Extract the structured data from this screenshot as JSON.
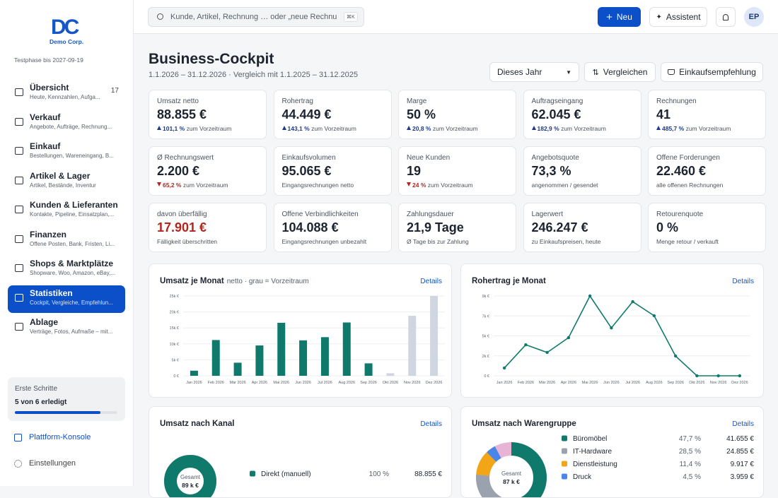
{
  "sidebar": {
    "logo": "DC",
    "company": "Demo Corp.",
    "trial": "Testphase bis 2027-09-19",
    "nav": [
      {
        "title": "Übersicht",
        "subtitle": "Heute, Kennzahlen, Aufga...",
        "badge": "17"
      },
      {
        "title": "Verkauf",
        "subtitle": "Angebote, Aufträge, Rechnung..."
      },
      {
        "title": "Einkauf",
        "subtitle": "Bestellungen, Wareneingang, B..."
      },
      {
        "title": "Artikel & Lager",
        "subtitle": "Artikel, Bestände, Inventur"
      },
      {
        "title": "Kunden & Lieferanten",
        "subtitle": "Kontakte, Pipeline, Einsatzplan,..."
      },
      {
        "title": "Finanzen",
        "subtitle": "Offene Posten, Bank, Fristen, Li..."
      },
      {
        "title": "Shops & Marktplätze",
        "subtitle": "Shopware, Woo, Amazon, eBay,..."
      },
      {
        "title": "Statistiken",
        "subtitle": "Cockpit, Vergleiche, Empfehlun...",
        "active": true
      },
      {
        "title": "Ablage",
        "subtitle": "Verträge, Fotos, Aufmaße – mit..."
      }
    ],
    "onboarding": {
      "title": "Erste Schritte",
      "label": "5 von 6 erledigt",
      "value": 5,
      "max": 6
    },
    "links": [
      "Plattform-Konsole",
      "Einstellungen"
    ]
  },
  "topbar": {
    "search": "Kunde, Artikel, Rechnung … oder „neue Rechnu",
    "shortcut": "⌘K",
    "new": "Neu",
    "assistant": "Assistent",
    "avatar": "EP"
  },
  "header": {
    "title": "Business-Cockpit",
    "subtitle": "1.1.2026 – 31.12.2026 · Vergleich mit 1.1.2025 – 31.12.2025",
    "period": "Dieses Jahr",
    "compare": "Vergleichen",
    "recommend": "Einkaufsempfehlung"
  },
  "kpis": [
    {
      "label": "Umsatz netto",
      "value": "88.855 €",
      "delta": "101,1 %",
      "trend": "up",
      "note": "zum Vorzeitraum"
    },
    {
      "label": "Rohertrag",
      "value": "44.449 €",
      "delta": "143,1 %",
      "trend": "up",
      "note": "zum Vorzeitraum"
    },
    {
      "label": "Marge",
      "value": "50 %",
      "delta": "20,8 %",
      "trend": "up",
      "note": "zum Vorzeitraum"
    },
    {
      "label": "Auftragseingang",
      "value": "62.045 €",
      "delta": "182,9 %",
      "trend": "up",
      "note": "zum Vorzeitraum"
    },
    {
      "label": "Rechnungen",
      "value": "41",
      "delta": "485,7 %",
      "trend": "up",
      "note": "zum Vorzeitraum"
    },
    {
      "label": "Ø Rechnungswert",
      "value": "2.200 €",
      "delta": "65,2 %",
      "trend": "down",
      "note": "zum Vorzeitraum"
    },
    {
      "label": "Einkaufsvolumen",
      "value": "95.065 €",
      "note": "Eingangsrechnungen netto"
    },
    {
      "label": "Neue Kunden",
      "value": "19",
      "delta": "24 %",
      "trend": "down",
      "note": "zum Vorzeitraum"
    },
    {
      "label": "Angebotsquote",
      "value": "73,3 %",
      "note": "angenommen / gesendet"
    },
    {
      "label": "Offene Forderungen",
      "value": "22.460 €",
      "note": "alle offenen Rechnungen"
    },
    {
      "label": "davon überfällig",
      "value": "17.901 €",
      "note": "Fälligkeit überschritten",
      "color": "#b3261e"
    },
    {
      "label": "Offene Verbindlichkeiten",
      "value": "104.088 €",
      "note": "Eingangsrechnungen unbezahlt"
    },
    {
      "label": "Zahlungsdauer",
      "value": "21,9 Tage",
      "note": "Ø Tage bis zur Zahlung"
    },
    {
      "label": "Lagerwert",
      "value": "246.247 €",
      "note": "zu Einkaufspreisen, heute"
    },
    {
      "label": "Retourenquote",
      "value": "0 %",
      "note": "Menge retour / verkauft"
    }
  ],
  "chart_data": [
    {
      "type": "bar",
      "title": "Umsatz je Monat",
      "subtitle": "netto · grau = Vorzeitraum",
      "link": "Details",
      "categories": [
        "Jan 2026",
        "Feb 2026",
        "Mär 2026",
        "Apr 2026",
        "Mai 2026",
        "Jun 2026",
        "Jul 2026",
        "Aug 2026",
        "Sep 2026",
        "Okt 2026",
        "Nov 2026",
        "Dez 2026"
      ],
      "series": [
        {
          "color": "#cfd6e0",
          "values": [
            null,
            null,
            null,
            null,
            null,
            null,
            null,
            null,
            null,
            800,
            18800,
            25000
          ]
        },
        {
          "color": "#0f7a6c",
          "values": [
            1600,
            11200,
            4100,
            9500,
            16600,
            11100,
            12100,
            16700,
            3900,
            null,
            null,
            null
          ]
        }
      ],
      "ylim": [
        0,
        25000
      ],
      "yticks": [
        {
          "value": 0,
          "label": "0 €"
        },
        {
          "value": 5000,
          "label": "5k €"
        },
        {
          "value": 10000,
          "label": "10k €"
        },
        {
          "value": 15000,
          "label": "15k €"
        },
        {
          "value": 20000,
          "label": "20k €"
        },
        {
          "value": 25000,
          "label": "25k €"
        }
      ],
      "grid": true
    },
    {
      "type": "line",
      "title": "Rohertrag je Monat",
      "link": "Details",
      "categories": [
        "Jan 2026",
        "Feb 2026",
        "Mär 2026",
        "Apr 2026",
        "Mai 2026",
        "Jun 2026",
        "Jul 2026",
        "Aug 2026",
        "Sep 2026",
        "Okt 2026",
        "Nov 2026",
        "Dez 2026"
      ],
      "series": [
        {
          "color": "#0f7a6c",
          "values": [
            880,
            3500,
            2630,
            4300,
            9000,
            5400,
            8360,
            6770,
            2230,
            0,
            0,
            0
          ]
        }
      ],
      "ylim": [
        0,
        9000
      ],
      "yticks": [
        {
          "value": 0,
          "label": "0 €"
        },
        {
          "value": 2250,
          "label": "2k €"
        },
        {
          "value": 4500,
          "label": "5k €"
        },
        {
          "value": 6750,
          "label": "7k €"
        },
        {
          "value": 9000,
          "label": "9k €"
        }
      ],
      "grid": true
    },
    {
      "type": "pie",
      "title": "Umsatz nach Kanal",
      "link": "Details",
      "center_label": "Gesamt",
      "center_value": "89 k €",
      "categories": [
        "Direkt (manuell)"
      ],
      "values": [
        100
      ],
      "value_labels": [
        "100 %"
      ],
      "amounts": [
        "88.855 €"
      ],
      "colors": [
        "#0f7a6c"
      ]
    },
    {
      "type": "pie",
      "title": "Umsatz nach Warengruppe",
      "link": "Details",
      "center_label": "Gesamt",
      "center_value": "87 k €",
      "categories": [
        "Büromöbel",
        "IT-Hardware",
        "Dienstleistung",
        "Druck"
      ],
      "values": [
        47.7,
        28.5,
        11.4,
        4.5
      ],
      "value_labels": [
        "47,7 %",
        "28,5 %",
        "11,4 %",
        "4,5 %"
      ],
      "amounts": [
        "41.655 €",
        "24.855 €",
        "9.917 €",
        "3.959 €"
      ],
      "colors": [
        "#0f7a6c",
        "#9aa3ad",
        "#f2a516",
        "#4a86e8"
      ]
    }
  ]
}
